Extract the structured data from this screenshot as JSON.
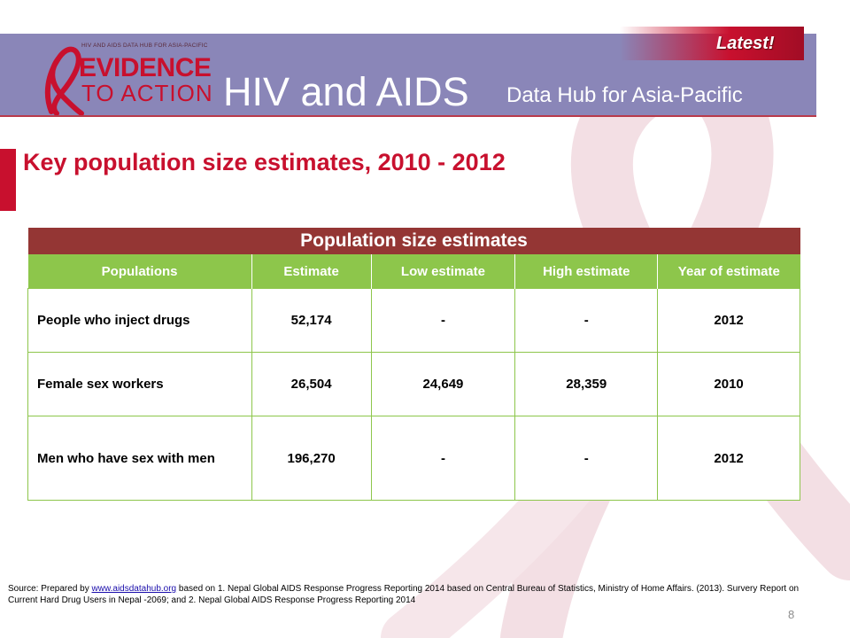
{
  "header": {
    "logo_small": "HIV AND AIDS DATA HUB FOR ASIA-PACIFIC",
    "logo_line1": "EVIDENCE",
    "logo_line2": "TO ACTION",
    "title": "HIV and AIDS",
    "subtitle": "Data Hub for Asia-Pacific",
    "badge": "Latest!"
  },
  "slide": {
    "title": "Key population size estimates, 2010 - 2012"
  },
  "table": {
    "caption": "Population size estimates",
    "columns": [
      "Populations",
      "Estimate",
      "Low estimate",
      "High estimate",
      "Year of estimate"
    ],
    "rows": [
      [
        "People who inject drugs",
        "52,174",
        "-",
        "-",
        "2012"
      ],
      [
        "Female sex workers",
        "26,504",
        "24,649",
        "28,359",
        "2010"
      ],
      [
        "Men who have sex with men",
        "196,270",
        "-",
        "-",
        "2012"
      ]
    ]
  },
  "footer": {
    "source_prefix": "Source: Prepared by ",
    "source_link": "www.aidsdatahub.org",
    "source_rest": " based on 1. Nepal Global AIDS Response Progress Reporting 2014 based on Central Bureau of Statistics, Ministry of Home Affairs. (2013). Survery Report on Current Hard Drug Users in Nepal -2069; and 2. Nepal Global AIDS Response Progress Reporting 2014",
    "page_number": "8"
  },
  "colors": {
    "header_bg": "#8a86b8",
    "accent_red": "#c8102e",
    "caption_bg": "#943634",
    "column_header_bg": "#8dc64b",
    "ribbon": "#f3dfe4"
  }
}
